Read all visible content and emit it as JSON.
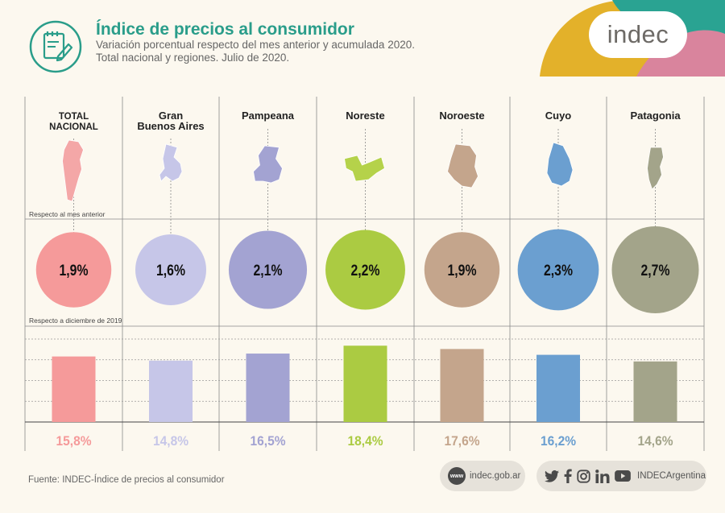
{
  "header": {
    "title": "Índice de precios al consumidor",
    "subtitle_line1": "Variación porcentual respecto del mes anterior y acumulada 2020.",
    "subtitle_line2": "Total nacional y regiones. Julio de 2020."
  },
  "logo": "indec",
  "colors": {
    "title": "#2a9d8a",
    "deco_yellow": "#e3b12a",
    "deco_teal": "#2aa392",
    "deco_pink": "#d9849d"
  },
  "chart_data": {
    "type": "bar",
    "title": "Índice de precios al consumidor",
    "monthly_label": "Respecto al mes anterior",
    "accumulated_label": "Respecto a diciembre de 2019",
    "unit": "%",
    "regions": [
      {
        "name_lines": [
          "TOTAL",
          "NACIONAL"
        ],
        "monthly": 1.9,
        "monthly_label": "1,9%",
        "accumulated": 15.8,
        "accumulated_label": "15,8%",
        "color": "#f59a9a",
        "map_color": "#f4a7a7"
      },
      {
        "name_lines": [
          "Gran",
          "Buenos Aires"
        ],
        "monthly": 1.6,
        "monthly_label": "1,6%",
        "accumulated": 14.8,
        "accumulated_label": "14,8%",
        "color": "#c6c6e8",
        "map_color": "#c6c6e8"
      },
      {
        "name_lines": [
          "Pampeana"
        ],
        "monthly": 2.1,
        "monthly_label": "2,1%",
        "accumulated": 16.5,
        "accumulated_label": "16,5%",
        "color": "#a3a3d2",
        "map_color": "#a3a3d2"
      },
      {
        "name_lines": [
          "Noreste"
        ],
        "monthly": 2.2,
        "monthly_label": "2,2%",
        "accumulated": 18.4,
        "accumulated_label": "18,4%",
        "color": "#abcb42",
        "map_color": "#b5d24a"
      },
      {
        "name_lines": [
          "Noroeste"
        ],
        "monthly": 1.9,
        "monthly_label": "1,9%",
        "accumulated": 17.6,
        "accumulated_label": "17,6%",
        "color": "#c4a58c",
        "map_color": "#c4a58c"
      },
      {
        "name_lines": [
          "Cuyo"
        ],
        "monthly": 2.3,
        "monthly_label": "2,3%",
        "accumulated": 16.2,
        "accumulated_label": "16,2%",
        "color": "#6b9fd0",
        "map_color": "#6b9fd0"
      },
      {
        "name_lines": [
          "Patagonia"
        ],
        "monthly": 2.7,
        "monthly_label": "2,7%",
        "accumulated": 14.6,
        "accumulated_label": "14,6%",
        "color": "#a3a48a",
        "map_color": "#a3a48a"
      }
    ],
    "accumulated_ylim": [
      0,
      20
    ]
  },
  "footer": {
    "source": "Fuente: INDEC-Índice de precios al consumidor",
    "www_badge": "www",
    "website": "indec.gob.ar",
    "social_handle": "INDECArgentina",
    "social_icons": [
      "twitter-icon",
      "facebook-icon",
      "instagram-icon",
      "linkedin-icon",
      "youtube-icon"
    ]
  }
}
